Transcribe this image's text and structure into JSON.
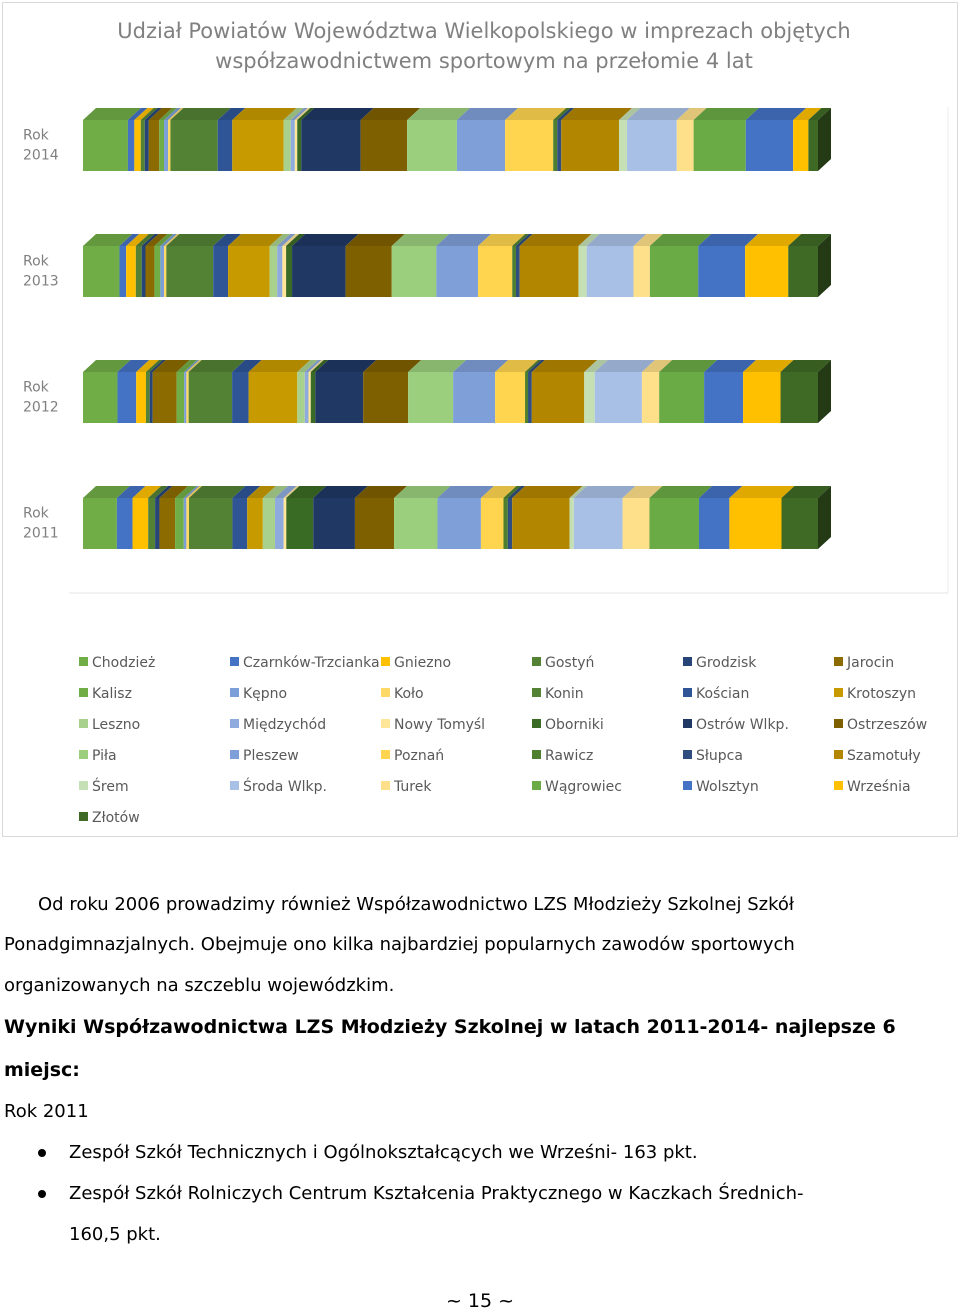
{
  "chart_data": {
    "type": "bar",
    "orientation": "horizontal",
    "stacked": true,
    "three_d": true,
    "title": "Udział Powiatów Województwa Wielkopolskiego w imprezach objętych współzawodnictwem sportowym na przełomie 4 lat",
    "title_lines": [
      "Udział Powiatów Województwa Wielkopolskiego w imprezach objętych",
      "współzawodnictwem sportowym na przełomie 4 lat"
    ],
    "categories": [
      "Rok 2014",
      "Rok 2013",
      "Rok 2012",
      "Rok 2011"
    ],
    "category_lines": [
      [
        "Rok",
        "2014"
      ],
      [
        "Rok",
        "2013"
      ],
      [
        "Rok",
        "2012"
      ],
      [
        "Rok",
        "2011"
      ]
    ],
    "legend_position": "bottom",
    "series": [
      {
        "name": "Chodzież",
        "color": "#70ad47",
        "values": [
          5.6,
          4.9,
          4.6,
          3.9
        ]
      },
      {
        "name": "Czarnków-Trzcianka",
        "color": "#4472c4",
        "values": [
          0.8,
          0.9,
          2.5,
          1.8
        ]
      },
      {
        "name": "Gniezno",
        "color": "#ffc000",
        "values": [
          0.8,
          1.3,
          1.3,
          1.8
        ]
      },
      {
        "name": "Gostyń",
        "color": "#548235",
        "values": [
          0.5,
          0.8,
          0.5,
          0.8
        ]
      },
      {
        "name": "Grodzisk",
        "color": "#264478",
        "values": [
          0.5,
          0.5,
          0.4,
          0.5
        ]
      },
      {
        "name": "Jarocin",
        "color": "#8c6b00",
        "values": [
          1.3,
          1.2,
          3.2,
          1.8
        ]
      },
      {
        "name": "Kalisz",
        "color": "#70ad47",
        "values": [
          0.6,
          0.8,
          1.0,
          1.0
        ]
      },
      {
        "name": "Kępno",
        "color": "#7b9fd6",
        "values": [
          0.5,
          0.5,
          0.3,
          0.3
        ]
      },
      {
        "name": "Koło",
        "color": "#ffd966",
        "values": [
          0.3,
          0.3,
          0.3,
          0.3
        ]
      },
      {
        "name": "Konin",
        "color": "#548235",
        "values": [
          5.9,
          6.3,
          5.8,
          5.0
        ]
      },
      {
        "name": "Kościan",
        "color": "#2f5597",
        "values": [
          1.8,
          2.0,
          2.2,
          1.7
        ]
      },
      {
        "name": "Krotoszyn",
        "color": "#c79a00",
        "values": [
          6.4,
          5.6,
          6.5,
          1.8
        ]
      },
      {
        "name": "Leszno",
        "color": "#a9d18e",
        "values": [
          0.9,
          1.0,
          1.0,
          1.4
        ]
      },
      {
        "name": "Międzychód",
        "color": "#8faadc",
        "values": [
          0.5,
          0.7,
          0.5,
          1.0
        ]
      },
      {
        "name": "Nowy Tomyśl",
        "color": "#ffe699",
        "values": [
          0.3,
          0.5,
          0.3,
          0.3
        ]
      },
      {
        "name": "Oborniki",
        "color": "#3a6b24",
        "values": [
          0.5,
          0.8,
          0.6,
          3.1
        ]
      },
      {
        "name": "Ostrów Wlkp.",
        "color": "#203864",
        "values": [
          7.4,
          7.2,
          6.4,
          4.8
        ]
      },
      {
        "name": "Ostrzeszów",
        "color": "#7f6000",
        "values": [
          5.8,
          6.2,
          6.0,
          4.5
        ]
      },
      {
        "name": "Piła",
        "color": "#9bcf7d",
        "values": [
          6.2,
          6.0,
          6.0,
          5.0
        ]
      },
      {
        "name": "Pleszew",
        "color": "#7f9fd8",
        "values": [
          6.0,
          5.6,
          5.6,
          5.0
        ]
      },
      {
        "name": "Poznań",
        "color": "#ffd54f",
        "values": [
          6.0,
          4.6,
          4.0,
          2.6
        ]
      },
      {
        "name": "Rawicz",
        "color": "#4e7f2e",
        "values": [
          0.5,
          0.5,
          0.4,
          0.5
        ]
      },
      {
        "name": "Słupca",
        "color": "#2f4d7e",
        "values": [
          0.5,
          0.5,
          0.5,
          0.5
        ]
      },
      {
        "name": "Szamotuły",
        "color": "#b38600",
        "values": [
          7.2,
          7.9,
          7.0,
          6.6
        ]
      },
      {
        "name": "Śrem",
        "color": "#c5e0b4",
        "values": [
          1.0,
          1.1,
          1.4,
          0.5
        ]
      },
      {
        "name": "Środa Wlkp.",
        "color": "#a9c0e6",
        "values": [
          6.2,
          6.3,
          6.3,
          5.6
        ]
      },
      {
        "name": "Turek",
        "color": "#ffe08a",
        "values": [
          2.1,
          2.2,
          2.3,
          3.1
        ]
      },
      {
        "name": "Wągrowiec",
        "color": "#6aab45",
        "values": [
          6.5,
          6.5,
          6.0,
          5.7
        ]
      },
      {
        "name": "Wolsztyn",
        "color": "#4472c4",
        "values": [
          5.9,
          6.3,
          5.2,
          3.5
        ]
      },
      {
        "name": "Września",
        "color": "#ffc000",
        "values": [
          1.9,
          5.8,
          5.0,
          6.0
        ]
      },
      {
        "name": "Złotów",
        "color": "#3f6a26",
        "values": [
          1.2,
          4.0,
          5.0,
          4.2
        ]
      }
    ],
    "grid": false,
    "xaxis_tick_labels_visible": false
  },
  "text": {
    "para1_line1": "Od roku 2006  prowadzimy również Współzawodnictwo LZS Młodzieży Szkolnej Szkół",
    "para1_line2": "Ponadgimnazjalnych. Obejmuje ono kilka najbardziej popularnych zawodów sportowych",
    "para1_line3": "organizowanych na szczeblu wojewódzkim.",
    "heading_line1": "Wyniki Współzawodnictwa LZS Młodzieży Szkolnej w latach 2011-2014- najlepsze 6",
    "heading_line2": "miejsc:",
    "year_heading": "Rok 2011",
    "bullet1": "Zespół Szkół Technicznych i Ogólnokształcących we Wrześni- 163 pkt.",
    "bullet2_line1": "Zespół Szkół Rolniczych Centrum Kształcenia Praktycznego w Kaczkach Średnich-",
    "bullet2_line2": "160,5 pkt."
  },
  "page_number": "~ 15 ~"
}
